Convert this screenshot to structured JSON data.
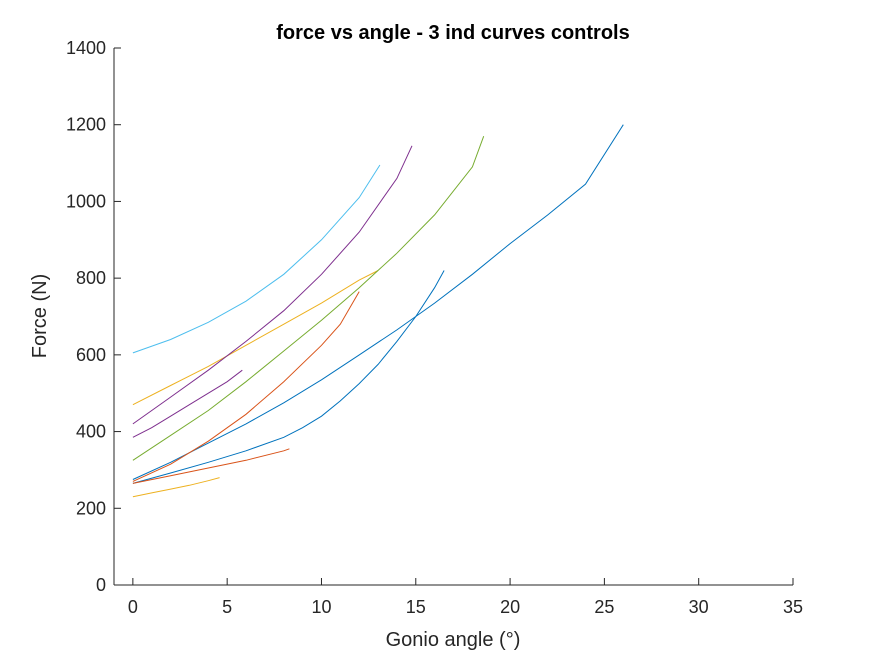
{
  "chart_data": {
    "type": "line",
    "title": "force vs angle - 3 ind curves controls",
    "xlabel": "Gonio angle (°)",
    "ylabel": "Force (N)",
    "xlim": [
      -1,
      35
    ],
    "ylim": [
      0,
      1400
    ],
    "xticks": [
      0,
      5,
      10,
      15,
      20,
      25,
      30,
      35
    ],
    "yticks": [
      0,
      200,
      400,
      600,
      800,
      1000,
      1200,
      1400
    ],
    "grid": false,
    "legend": "none",
    "series": [
      {
        "color": "#0072BD",
        "x": [
          0,
          2,
          4,
          6,
          8,
          10,
          12,
          14,
          16,
          18,
          20,
          22,
          24,
          26
        ],
        "y": [
          275,
          320,
          370,
          420,
          475,
          535,
          600,
          665,
          735,
          810,
          890,
          965,
          1045,
          1200
        ]
      },
      {
        "color": "#0072BD",
        "x": [
          0,
          2,
          4,
          6,
          8,
          9,
          10,
          11,
          12,
          13,
          14,
          15,
          16,
          16.5
        ],
        "y": [
          265,
          292,
          320,
          350,
          385,
          410,
          440,
          480,
          525,
          575,
          635,
          700,
          775,
          820
        ]
      },
      {
        "color": "#D95319",
        "x": [
          0,
          2,
          4,
          6,
          8,
          10,
          11,
          12
        ],
        "y": [
          270,
          315,
          375,
          445,
          530,
          625,
          680,
          765
        ]
      },
      {
        "color": "#D95319",
        "x": [
          0,
          2,
          4,
          6,
          8,
          8.3
        ],
        "y": [
          265,
          285,
          305,
          325,
          350,
          355
        ]
      },
      {
        "color": "#EDB120",
        "x": [
          0,
          2,
          4,
          6,
          8,
          10,
          12,
          13
        ],
        "y": [
          470,
          520,
          570,
          625,
          680,
          735,
          795,
          820
        ]
      },
      {
        "color": "#EDB120",
        "x": [
          0,
          1,
          2,
          3,
          4,
          4.6
        ],
        "y": [
          230,
          240,
          250,
          260,
          272,
          280
        ]
      },
      {
        "color": "#7E2F8E",
        "x": [
          0,
          2,
          4,
          6,
          8,
          10,
          12,
          14,
          14.8
        ],
        "y": [
          420,
          490,
          560,
          635,
          715,
          810,
          920,
          1060,
          1145
        ]
      },
      {
        "color": "#7E2F8E",
        "x": [
          0,
          1,
          2,
          3,
          4,
          5,
          5.8
        ],
        "y": [
          385,
          410,
          440,
          470,
          500,
          530,
          560
        ]
      },
      {
        "color": "#77AC30",
        "x": [
          0,
          2,
          4,
          6,
          8,
          10,
          12,
          14,
          16,
          18,
          18.6
        ],
        "y": [
          325,
          390,
          455,
          530,
          610,
          690,
          775,
          865,
          965,
          1090,
          1170
        ]
      },
      {
        "color": "#4DBEEE",
        "x": [
          0,
          2,
          4,
          6,
          8,
          10,
          12,
          13.1
        ],
        "y": [
          605,
          640,
          685,
          740,
          810,
          900,
          1010,
          1095
        ]
      }
    ]
  }
}
